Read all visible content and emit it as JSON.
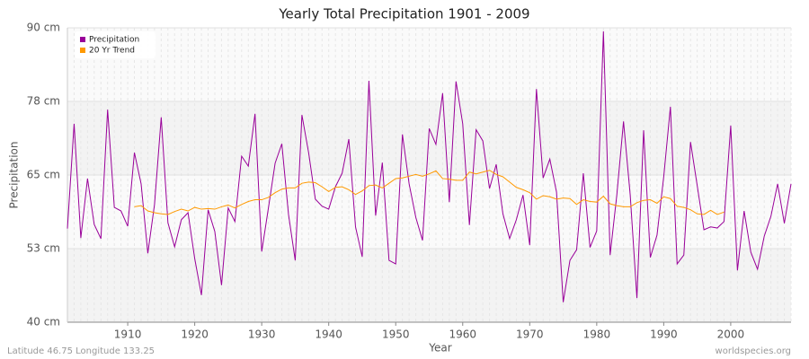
{
  "chart_data": {
    "type": "line",
    "title": "Yearly Total Precipitation 1901 - 2009",
    "x_label": "Year",
    "y_label": "Precipitation",
    "footer_left": "Latitude 46.75 Longitude 133.25",
    "footer_right": "worldspecies.org",
    "legend": "top-left",
    "grid": true,
    "xlim": [
      1901,
      2009
    ],
    "xticks": [
      1910,
      1920,
      1930,
      1940,
      1950,
      1960,
      1970,
      1980,
      1990,
      2000
    ],
    "ylim": [
      40,
      90
    ],
    "yticks": [
      {
        "value": 40,
        "label": "40 cm"
      },
      {
        "value": 52.5,
        "label": "53 cm"
      },
      {
        "value": 65,
        "label": "65 cm"
      },
      {
        "value": 77.5,
        "label": "78 cm"
      },
      {
        "value": 90,
        "label": "90 cm"
      }
    ],
    "x": [
      1901,
      1902,
      1903,
      1904,
      1905,
      1906,
      1907,
      1908,
      1909,
      1910,
      1911,
      1912,
      1913,
      1914,
      1915,
      1916,
      1917,
      1918,
      1919,
      1920,
      1921,
      1922,
      1923,
      1924,
      1925,
      1926,
      1927,
      1928,
      1929,
      1930,
      1931,
      1932,
      1933,
      1934,
      1935,
      1936,
      1937,
      1938,
      1939,
      1940,
      1941,
      1942,
      1943,
      1944,
      1945,
      1946,
      1947,
      1948,
      1949,
      1950,
      1951,
      1952,
      1953,
      1954,
      1955,
      1956,
      1957,
      1958,
      1959,
      1960,
      1961,
      1962,
      1963,
      1964,
      1965,
      1966,
      1967,
      1968,
      1969,
      1970,
      1971,
      1972,
      1973,
      1974,
      1975,
      1976,
      1977,
      1978,
      1979,
      1980,
      1981,
      1982,
      1983,
      1984,
      1985,
      1986,
      1987,
      1988,
      1989,
      1990,
      1991,
      1992,
      1993,
      1994,
      1995,
      1996,
      1997,
      1998,
      1999,
      2000,
      2001,
      2002,
      2003,
      2004,
      2005,
      2006,
      2007,
      2008,
      2009
    ],
    "series": [
      {
        "name": "Precipitation",
        "color": "#990099",
        "values": [
          55.9,
          73.7,
          54.3,
          64.4,
          56.6,
          54.2,
          76.1,
          59.5,
          58.9,
          56.3,
          68.8,
          63.5,
          51.7,
          60.0,
          74.8,
          56.9,
          52.8,
          57.4,
          58.6,
          50.8,
          44.6,
          59.1,
          55.4,
          46.3,
          59.4,
          57.1,
          68.2,
          66.5,
          75.4,
          52.0,
          59.4,
          67.0,
          70.3,
          58.3,
          50.5,
          75.2,
          68.8,
          60.9,
          59.7,
          59.2,
          63.0,
          65.3,
          71.1,
          56.2,
          51.1,
          81.0,
          58.1,
          67.1,
          50.5,
          49.9,
          71.9,
          63.5,
          57.8,
          53.9,
          72.9,
          70.2,
          78.9,
          60.4,
          80.9,
          73.7,
          56.5,
          72.7,
          70.8,
          62.7,
          66.8,
          58.4,
          54.2,
          57.4,
          61.6,
          53.1,
          79.6,
          64.5,
          67.7,
          62.1,
          43.4,
          50.5,
          52.3,
          65.3,
          52.7,
          55.5,
          89.4,
          51.4,
          61.6,
          74.1,
          61.6,
          44.1,
          72.6,
          51.0,
          54.8,
          64.7,
          76.6,
          49.9,
          51.4,
          70.6,
          63.2,
          55.7,
          56.2,
          56.0,
          57.1,
          73.4,
          48.8,
          58.9,
          51.9,
          49.0,
          54.6,
          58.0,
          63.5,
          56.8,
          63.5
        ]
      },
      {
        "name": "20 Yr Trend",
        "color": "#ff9900",
        "values": [
          null,
          null,
          null,
          null,
          null,
          null,
          null,
          null,
          null,
          null,
          59.6,
          59.8,
          58.9,
          58.6,
          58.4,
          58.3,
          58.8,
          59.2,
          58.9,
          59.5,
          59.2,
          59.3,
          59.2,
          59.6,
          59.9,
          59.4,
          60.0,
          60.5,
          60.8,
          60.8,
          61.2,
          62.0,
          62.6,
          62.8,
          62.8,
          63.6,
          63.8,
          63.7,
          63.0,
          62.2,
          62.9,
          63.0,
          62.5,
          61.7,
          62.3,
          63.2,
          63.3,
          62.8,
          63.6,
          64.4,
          64.5,
          64.8,
          65.1,
          64.8,
          65.2,
          65.7,
          64.4,
          64.3,
          64.1,
          64.1,
          65.5,
          65.2,
          65.5,
          65.8,
          65.1,
          64.7,
          63.8,
          62.9,
          62.5,
          62.0,
          60.9,
          61.5,
          61.3,
          60.9,
          61.1,
          61.0,
          60.0,
          60.8,
          60.5,
          60.4,
          61.4,
          60.1,
          59.8,
          59.6,
          59.6,
          60.3,
          60.7,
          60.8,
          60.2,
          61.3,
          61.0,
          59.7,
          59.5,
          59.1,
          58.4,
          58.3,
          59.0,
          58.3,
          58.7,
          null,
          null,
          null,
          null,
          null,
          null,
          null,
          null,
          null,
          null
        ]
      }
    ]
  }
}
